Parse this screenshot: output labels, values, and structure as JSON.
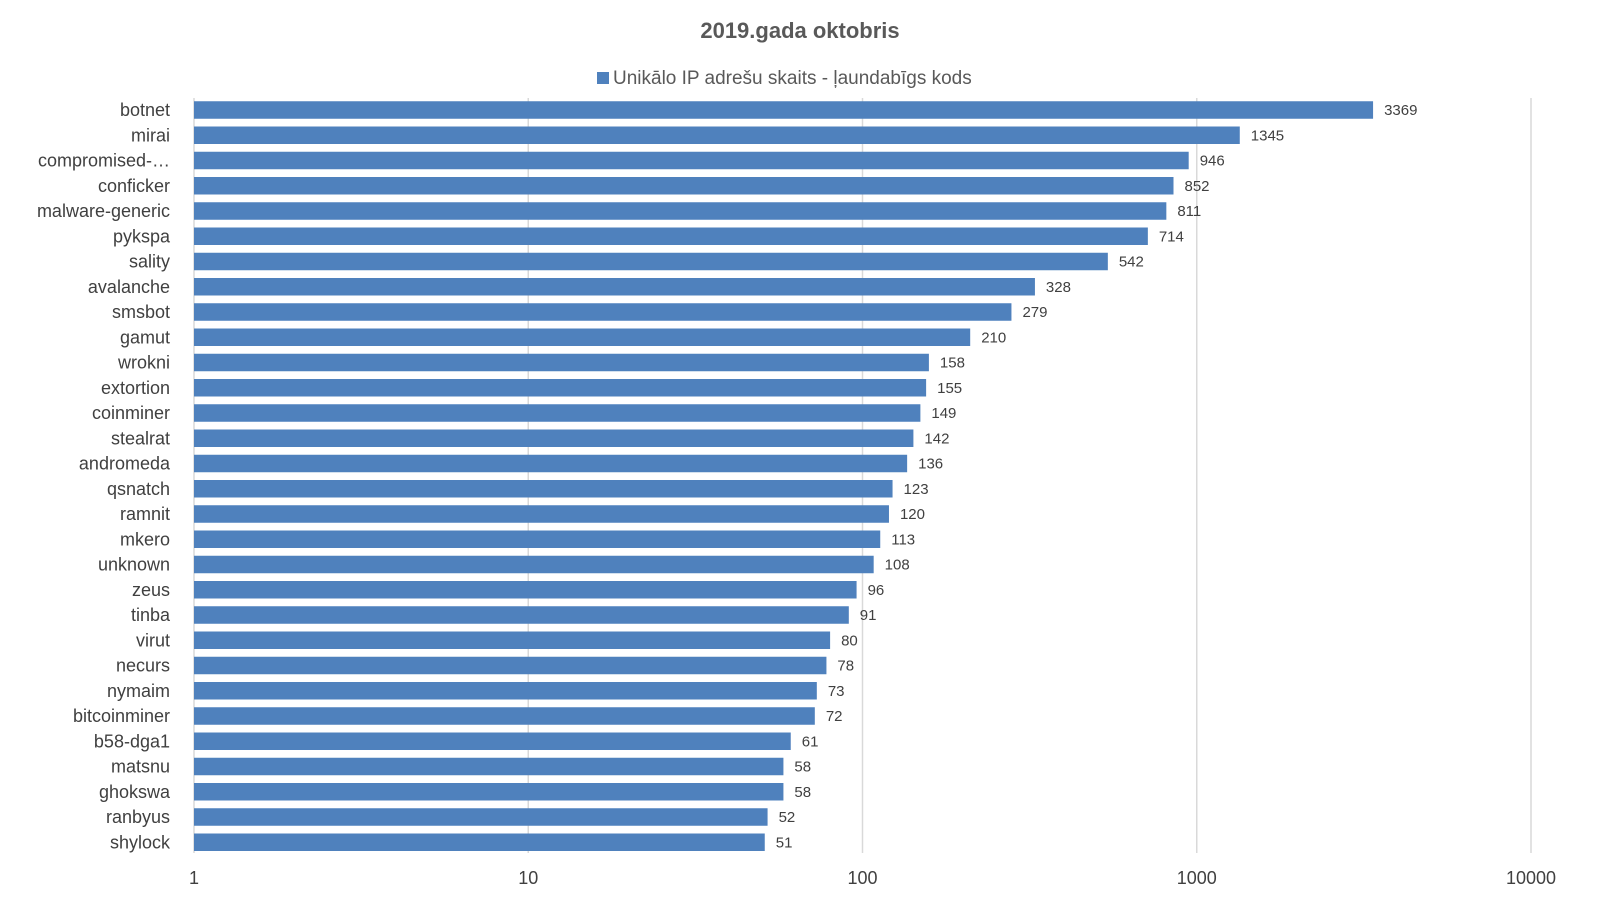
{
  "chart_data": {
    "type": "bar",
    "orientation": "horizontal",
    "title": "2019.gada oktobris",
    "xscale": "log",
    "xlim": [
      1,
      10000
    ],
    "xticks": [
      "1",
      "10",
      "100",
      "1000",
      "10000"
    ],
    "grid": true,
    "legend_position": "top",
    "bar_color": "#4f81bd",
    "categories": [
      "botnet",
      "mirai",
      "compromised-…",
      "conficker",
      "malware-generic",
      "pykspa",
      "sality",
      "avalanche",
      "smsbot",
      "gamut",
      "wrokni",
      "extortion",
      "coinminer",
      "stealrat",
      "andromeda",
      "qsnatch",
      "ramnit",
      "mkero",
      "unknown",
      "zeus",
      "tinba",
      "virut",
      "necurs",
      "nymaim",
      "bitcoinminer",
      "b58-dga1",
      "matsnu",
      "ghokswa",
      "ranbyus",
      "shylock"
    ],
    "series": [
      {
        "name": "Unikālo IP adrešu skaits -  ļaundabīgs kods",
        "values": [
          3369,
          1345,
          946,
          852,
          811,
          714,
          542,
          328,
          279,
          210,
          158,
          155,
          149,
          142,
          136,
          123,
          120,
          113,
          108,
          96,
          91,
          80,
          78,
          73,
          72,
          61,
          58,
          58,
          52,
          51
        ]
      }
    ]
  }
}
